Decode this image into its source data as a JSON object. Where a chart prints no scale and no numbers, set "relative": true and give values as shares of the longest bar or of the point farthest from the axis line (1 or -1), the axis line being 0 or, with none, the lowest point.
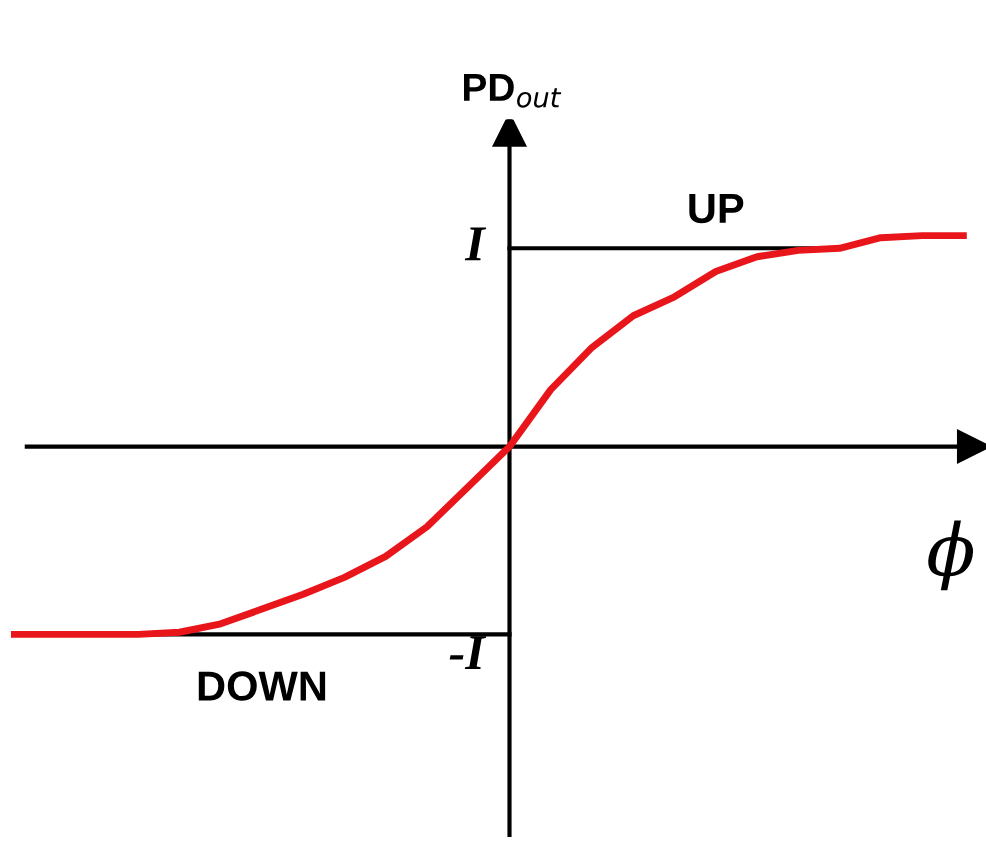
{
  "chart_data": {
    "type": "line",
    "relative": true,
    "ylabel": "PD$_{out}$",
    "xlabel": "ϕ",
    "categories": [
      null,
      null,
      null,
      null,
      null,
      null,
      null,
      null,
      null,
      null,
      null,
      null,
      null,
      null,
      null,
      null,
      null,
      null,
      null,
      null,
      null,
      null,
      null,
      null
    ],
    "series": [
      {
        "color": "#e8161b",
        "values": [
          -0.89,
          -0.89,
          -0.89,
          -0.89,
          -0.88,
          -0.84,
          -0.77,
          -0.7,
          -0.62,
          -0.52,
          -0.38,
          -0.19,
          0,
          0.27,
          0.47,
          0.62,
          0.71,
          0.83,
          0.9,
          0.93,
          0.94,
          0.99,
          1,
          1
        ]
      }
    ],
    "ref_lines": [
      {
        "axis": "y",
        "value": 0.94,
        "label": "I",
        "color": "#000000"
      },
      {
        "axis": "y",
        "value": -0.89,
        "label": "-I",
        "color": "#000000"
      }
    ],
    "annotations": [
      "UP",
      "DOWN"
    ],
    "legend": false,
    "marker": "none",
    "line_style": "solid"
  }
}
